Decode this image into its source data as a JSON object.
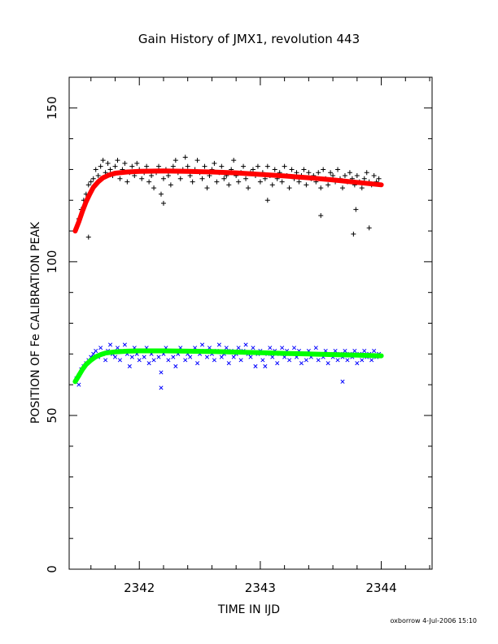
{
  "chart_data": {
    "type": "scatter",
    "title": "Gain History of JMX1, revolution 443",
    "xlabel": "TIME IN IJD",
    "ylabel": "POSITION OF Fe CALIBRATION PEAK",
    "xlim": [
      2341.42,
      2344.42
    ],
    "ylim": [
      0,
      160
    ],
    "xticks": [
      2342,
      2343,
      2344
    ],
    "yticks": [
      0,
      50,
      100,
      150
    ],
    "grid": false,
    "footer": "oxborrow  4-Jul-2006 15:10",
    "series": [
      {
        "marker": "+",
        "color": "#000000",
        "x": [
          2341.48,
          2341.5,
          2341.52,
          2341.54,
          2341.56,
          2341.58,
          2341.6,
          2341.62,
          2341.64,
          2341.66,
          2341.68,
          2341.7,
          2341.72,
          2341.74,
          2341.76,
          2341.78,
          2341.8,
          2341.82,
          2341.84,
          2341.86,
          2341.88,
          2341.9,
          2341.92,
          2341.94,
          2341.96,
          2341.98,
          2342.0,
          2342.02,
          2342.04,
          2342.06,
          2342.08,
          2342.1,
          2342.12,
          2342.14,
          2342.16,
          2342.18,
          2342.2,
          2342.22,
          2342.24,
          2342.26,
          2342.28,
          2342.3,
          2342.32,
          2342.34,
          2342.36,
          2342.38,
          2342.4,
          2342.42,
          2342.44,
          2342.46,
          2342.48,
          2342.5,
          2342.52,
          2342.54,
          2342.56,
          2342.58,
          2342.6,
          2342.62,
          2342.64,
          2342.66,
          2342.68,
          2342.7,
          2342.72,
          2342.74,
          2342.76,
          2342.78,
          2342.8,
          2342.82,
          2342.84,
          2342.86,
          2342.88,
          2342.9,
          2342.92,
          2342.94,
          2342.96,
          2342.98,
          2343.0,
          2343.02,
          2343.04,
          2343.06,
          2343.08,
          2343.1,
          2343.12,
          2343.14,
          2343.16,
          2343.18,
          2343.2,
          2343.22,
          2343.24,
          2343.26,
          2343.28,
          2343.3,
          2343.32,
          2343.34,
          2343.36,
          2343.38,
          2343.4,
          2343.42,
          2343.44,
          2343.46,
          2343.48,
          2343.5,
          2343.52,
          2343.54,
          2343.56,
          2343.58,
          2343.6,
          2343.62,
          2343.64,
          2343.66,
          2343.68,
          2343.7,
          2343.72,
          2343.74,
          2343.76,
          2343.78,
          2343.8,
          2343.82,
          2343.84,
          2343.86,
          2343.88,
          2343.9,
          2343.92,
          2343.94,
          2343.96,
          2343.98,
          2343.5,
          2343.79,
          2343.9,
          2341.58,
          2342.2,
          2343.77,
          2343.06
        ],
        "y": [
          111,
          114,
          117,
          120,
          122,
          125,
          126,
          127,
          130,
          128,
          131,
          133,
          129,
          132,
          130,
          128,
          131,
          133,
          127,
          130,
          132,
          126,
          129,
          131,
          128,
          132,
          130,
          127,
          129,
          131,
          126,
          128,
          124,
          129,
          131,
          122,
          127,
          130,
          128,
          125,
          131,
          133,
          129,
          127,
          130,
          134,
          131,
          128,
          126,
          130,
          133,
          129,
          127,
          131,
          124,
          128,
          130,
          132,
          126,
          129,
          131,
          127,
          128,
          125,
          130,
          133,
          128,
          126,
          129,
          131,
          127,
          124,
          129,
          130,
          128,
          131,
          126,
          129,
          127,
          131,
          128,
          125,
          130,
          127,
          129,
          126,
          131,
          128,
          124,
          130,
          127,
          129,
          126,
          128,
          130,
          125,
          129,
          127,
          128,
          126,
          129,
          124,
          130,
          127,
          125,
          129,
          128,
          126,
          130,
          127,
          124,
          128,
          126,
          129,
          127,
          125,
          128,
          126,
          124,
          127,
          129,
          126,
          125,
          128,
          126,
          127,
          115,
          117,
          111,
          108,
          119,
          109,
          120
        ]
      },
      {
        "marker": "x",
        "color": "#0000ff",
        "x": [
          2341.48,
          2341.5,
          2341.52,
          2341.54,
          2341.56,
          2341.58,
          2341.6,
          2341.62,
          2341.64,
          2341.66,
          2341.68,
          2341.7,
          2341.72,
          2341.74,
          2341.76,
          2341.78,
          2341.8,
          2341.82,
          2341.84,
          2341.86,
          2341.88,
          2341.9,
          2341.92,
          2341.94,
          2341.96,
          2341.98,
          2342.0,
          2342.02,
          2342.04,
          2342.06,
          2342.08,
          2342.1,
          2342.12,
          2342.14,
          2342.16,
          2342.18,
          2342.2,
          2342.22,
          2342.24,
          2342.26,
          2342.28,
          2342.3,
          2342.32,
          2342.34,
          2342.36,
          2342.38,
          2342.4,
          2342.42,
          2342.44,
          2342.46,
          2342.48,
          2342.5,
          2342.52,
          2342.54,
          2342.56,
          2342.58,
          2342.6,
          2342.62,
          2342.64,
          2342.66,
          2342.68,
          2342.7,
          2342.72,
          2342.74,
          2342.76,
          2342.78,
          2342.8,
          2342.82,
          2342.84,
          2342.86,
          2342.88,
          2342.9,
          2342.92,
          2342.94,
          2342.96,
          2342.98,
          2343.0,
          2343.02,
          2343.04,
          2343.06,
          2343.08,
          2343.1,
          2343.12,
          2343.14,
          2343.16,
          2343.18,
          2343.2,
          2343.22,
          2343.24,
          2343.26,
          2343.28,
          2343.3,
          2343.32,
          2343.34,
          2343.36,
          2343.38,
          2343.4,
          2343.42,
          2343.44,
          2343.46,
          2343.48,
          2343.5,
          2343.52,
          2343.54,
          2343.56,
          2343.58,
          2343.6,
          2343.62,
          2343.64,
          2343.66,
          2343.68,
          2343.7,
          2343.72,
          2343.74,
          2343.76,
          2343.78,
          2343.8,
          2343.82,
          2343.84,
          2343.86,
          2343.88,
          2343.9,
          2343.92,
          2343.94,
          2343.96,
          2343.98,
          2342.18,
          2343.68,
          2341.5
        ],
        "y": [
          62,
          63,
          65,
          66,
          67,
          68,
          69,
          70,
          71,
          69,
          72,
          70,
          68,
          71,
          73,
          70,
          69,
          72,
          68,
          71,
          73,
          70,
          66,
          69,
          72,
          70,
          68,
          71,
          69,
          72,
          67,
          70,
          68,
          71,
          69,
          64,
          70,
          72,
          68,
          71,
          69,
          66,
          70,
          72,
          71,
          68,
          70,
          69,
          71,
          72,
          67,
          70,
          73,
          71,
          69,
          72,
          70,
          68,
          71,
          73,
          69,
          70,
          72,
          67,
          71,
          69,
          70,
          72,
          68,
          71,
          73,
          70,
          69,
          72,
          66,
          70,
          71,
          68,
          66,
          70,
          72,
          69,
          71,
          67,
          70,
          72,
          69,
          71,
          68,
          70,
          72,
          69,
          71,
          67,
          70,
          68,
          71,
          69,
          70,
          72,
          68,
          70,
          69,
          71,
          67,
          70,
          69,
          71,
          68,
          70,
          69,
          71,
          68,
          70,
          69,
          71,
          67,
          70,
          68,
          71,
          69,
          70,
          68,
          71,
          69,
          70,
          59,
          61,
          60
        ]
      },
      {
        "type": "line",
        "color": "#ff0000",
        "x": [
          2341.47,
          2341.5,
          2341.53,
          2341.56,
          2341.59,
          2341.62,
          2341.66,
          2341.7,
          2341.75,
          2341.8,
          2341.9,
          2342.0,
          2342.2,
          2342.4,
          2342.6,
          2342.8,
          2343.0,
          2343.2,
          2343.4,
          2343.6,
          2343.8,
          2344.0
        ],
        "y": [
          110,
          113,
          116.5,
          119.5,
          122,
          124.2,
          126,
          127.3,
          128.2,
          128.8,
          129.2,
          129.4,
          129.5,
          129.4,
          129.2,
          128.9,
          128.4,
          127.9,
          127.3,
          126.6,
          125.8,
          125
        ]
      },
      {
        "type": "line",
        "color": "#00ff00",
        "x": [
          2341.47,
          2341.5,
          2341.53,
          2341.56,
          2341.6,
          2341.64,
          2341.68,
          2341.72,
          2341.8,
          2341.9,
          2342.0,
          2342.2,
          2342.4,
          2342.6,
          2342.8,
          2343.0,
          2343.2,
          2343.4,
          2343.6,
          2343.8,
          2344.0
        ],
        "y": [
          61,
          63,
          65,
          66.6,
          68,
          69.1,
          69.8,
          70.3,
          70.7,
          70.9,
          71,
          71,
          70.9,
          70.8,
          70.6,
          70.4,
          70.2,
          70,
          69.8,
          69.6,
          69.4
        ]
      }
    ]
  }
}
